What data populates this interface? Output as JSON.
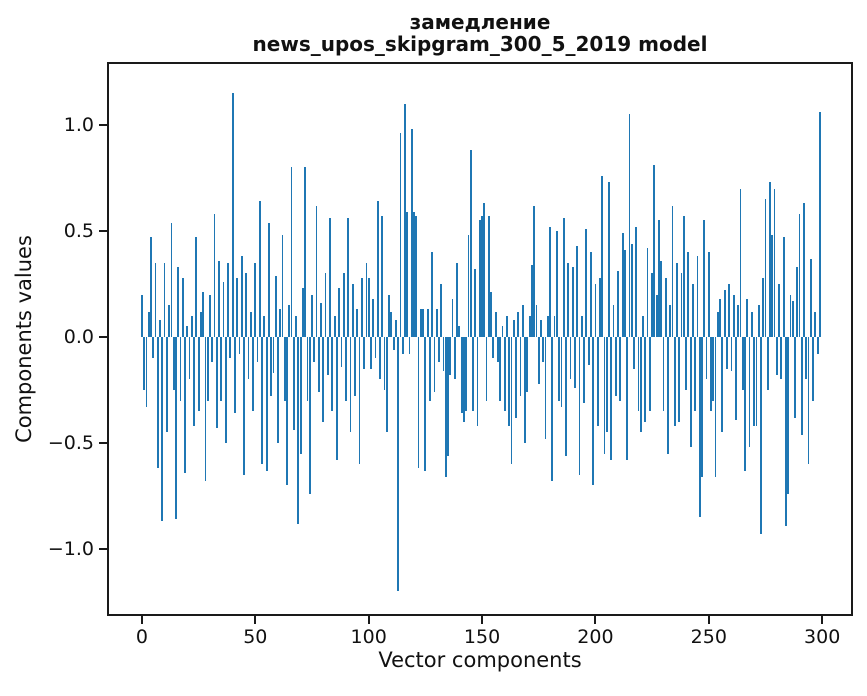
{
  "header": {
    "title_word": "замедление",
    "title_model": "news_upos_skipgram_300_5_2019 model"
  },
  "axes": {
    "x_tick_labels": [
      "0",
      "50",
      "100",
      "150",
      "200",
      "250",
      "300"
    ],
    "y_tick_labels": [
      "1.0",
      "0.5",
      "0.0",
      "−0.5",
      "−1.0"
    ]
  },
  "colors": {
    "bar": "#1f77b4",
    "axis": "#1a1a1a"
  },
  "chart_data": {
    "type": "bar",
    "title": "замедление\nnews_upos_skipgram_300_5_2019 model",
    "xlabel": "Vector components",
    "ylabel": "Components values",
    "x_ticks": [
      0,
      50,
      100,
      150,
      200,
      250,
      300
    ],
    "y_ticks": [
      1.0,
      0.5,
      0.0,
      -0.5,
      -1.0
    ],
    "xlim": [
      -15.4,
      313.6
    ],
    "ylim": [
      -1.316,
      1.297
    ],
    "grid": false,
    "legend": false,
    "n_components": 300,
    "values": [
      0.2,
      -0.25,
      -0.33,
      0.12,
      0.47,
      -0.1,
      0.35,
      -0.62,
      0.08,
      -0.87,
      0.35,
      -0.45,
      0.15,
      0.54,
      -0.25,
      -0.86,
      0.33,
      -0.3,
      0.28,
      -0.64,
      0.05,
      -0.2,
      0.1,
      -0.42,
      0.47,
      -0.35,
      0.12,
      0.21,
      -0.68,
      -0.3,
      0.2,
      -0.12,
      0.58,
      -0.43,
      0.36,
      -0.3,
      0.26,
      -0.5,
      0.35,
      -0.1,
      1.15,
      -0.36,
      0.28,
      -0.08,
      0.38,
      -0.65,
      0.3,
      -0.2,
      0.12,
      -0.35,
      0.35,
      -0.12,
      0.64,
      -0.6,
      0.1,
      -0.63,
      0.54,
      -0.28,
      -0.17,
      0.29,
      -0.5,
      0.13,
      0.48,
      -0.3,
      -0.7,
      0.15,
      0.8,
      -0.44,
      0.1,
      -0.88,
      -0.55,
      0.23,
      0.8,
      -0.3,
      -0.74,
      0.2,
      -0.12,
      0.62,
      -0.26,
      0.16,
      -0.4,
      0.3,
      -0.18,
      0.56,
      -0.35,
      0.1,
      -0.58,
      0.23,
      -0.14,
      0.3,
      -0.3,
      0.56,
      -0.45,
      0.25,
      -0.28,
      0.13,
      -0.6,
      0.28,
      -0.15,
      0.35,
      0.28,
      -0.15,
      0.18,
      -0.1,
      0.64,
      -0.2,
      0.57,
      -0.25,
      -0.45,
      0.2,
      0.12,
      -0.06,
      0.08,
      -1.2,
      0.96,
      -0.08,
      1.1,
      0.59,
      -0.08,
      0.98,
      0.59,
      0.57,
      -0.62,
      0.13,
      0.13,
      -0.63,
      0.13,
      -0.3,
      0.4,
      -0.26,
      0.13,
      -0.12,
      0.25,
      -0.16,
      -0.66,
      -0.56,
      -0.18,
      0.18,
      -0.2,
      0.35,
      0.05,
      -0.36,
      -0.4,
      -0.35,
      0.48,
      0.88,
      -0.35,
      0.32,
      -0.42,
      0.55,
      0.57,
      0.63,
      -0.3,
      0.57,
      0.21,
      -0.1,
      0.12,
      -0.12,
      -0.3,
      0.05,
      -0.35,
      0.1,
      -0.42,
      -0.6,
      0.08,
      -0.38,
      0.12,
      -0.28,
      0.15,
      -0.5,
      -0.26,
      0.1,
      0.34,
      0.62,
      0.15,
      -0.22,
      0.08,
      -0.12,
      -0.48,
      0.1,
      0.52,
      -0.68,
      0.1,
      0.5,
      -0.3,
      -0.33,
      0.56,
      -0.56,
      0.35,
      -0.2,
      0.33,
      -0.24,
      0.43,
      -0.65,
      0.1,
      -0.31,
      0.51,
      -0.13,
      0.4,
      -0.7,
      0.25,
      -0.42,
      0.28,
      0.76,
      -0.55,
      -0.45,
      0.73,
      -0.58,
      0.15,
      -0.28,
      0.31,
      -0.3,
      0.49,
      0.41,
      -0.58,
      1.05,
      0.44,
      -0.15,
      0.52,
      -0.35,
      -0.45,
      0.1,
      -0.4,
      0.42,
      -0.35,
      0.3,
      0.81,
      0.2,
      0.55,
      0.36,
      -0.35,
      0.28,
      -0.55,
      0.15,
      0.62,
      -0.42,
      0.35,
      -0.4,
      0.3,
      0.57,
      -0.25,
      0.4,
      -0.52,
      0.25,
      -0.35,
      0.38,
      -0.85,
      -0.66,
      0.55,
      -0.2,
      0.4,
      -0.35,
      -0.3,
      -0.66,
      0.12,
      0.18,
      -0.45,
      0.22,
      -0.15,
      0.25,
      -0.16,
      0.2,
      -0.39,
      0.15,
      0.7,
      -0.25,
      -0.63,
      0.18,
      -0.52,
      0.12,
      -0.42,
      -0.42,
      0.15,
      -0.93,
      0.28,
      0.65,
      -0.25,
      0.73,
      0.48,
      0.7,
      -0.18,
      0.25,
      -0.2,
      0.47,
      -0.89,
      -0.74,
      0.2,
      0.17,
      -0.38,
      0.33,
      0.58,
      -0.46,
      0.63,
      -0.2,
      -0.6,
      0.37,
      -0.3,
      0.12,
      -0.08,
      1.06
    ]
  }
}
